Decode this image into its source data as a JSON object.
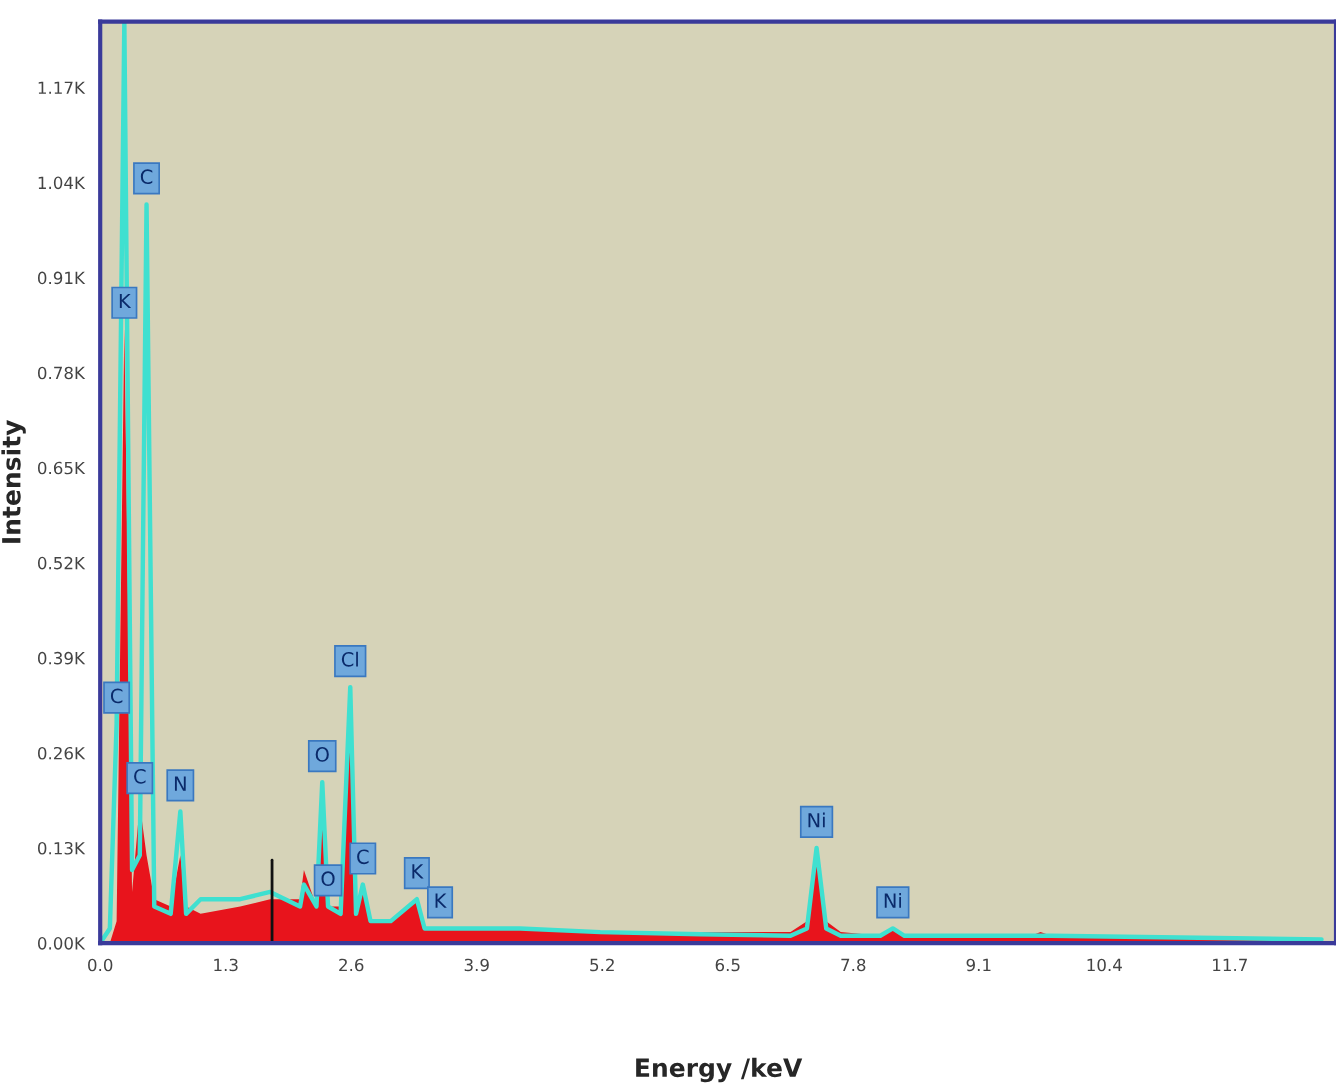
{
  "chart_data": {
    "type": "area",
    "xlabel": "Energy /keV",
    "ylabel": "Intensity",
    "x": [
      0,
      0.1,
      0.17,
      0.25,
      0.33,
      0.41,
      0.48,
      0.56,
      0.73,
      0.83,
      0.89,
      1.04,
      1.45,
      1.76,
      2.07,
      2.11,
      2.24,
      2.3,
      2.36,
      2.49,
      2.59,
      2.65,
      2.72,
      2.8,
      3.01,
      3.28,
      3.36,
      3.52,
      4.35,
      5.18,
      6.22,
      7.15,
      7.32,
      7.42,
      7.52,
      7.67,
      8.08,
      8.21,
      8.33,
      8.71,
      9.64,
      9.74,
      9.85,
      10.99,
      12.65
    ],
    "series": [
      {
        "color": "#e8141c",
        "values": [
          0,
          0.0,
          0.03,
          0.84,
          0.07,
          0.19,
          0.12,
          0.06,
          0.05,
          0.12,
          0.05,
          0.04,
          0.05,
          0.06,
          0.06,
          0.1,
          0.05,
          0.2,
          0.05,
          0.05,
          0.3,
          0.05,
          0.08,
          0.03,
          0.03,
          0.06,
          0.02,
          0.02,
          0.02,
          0.015,
          0.015,
          0.015,
          0.03,
          0.12,
          0.03,
          0.015,
          0.01,
          0.02,
          0.01,
          0.01,
          0.01,
          0.015,
          0.01,
          0.008,
          0.005
        ]
      },
      {
        "type": "line",
        "color": "#3fe0d0",
        "values": [
          0,
          0.02,
          0.3,
          1.26,
          0.1,
          0.12,
          1.01,
          0.05,
          0.04,
          0.18,
          0.04,
          0.06,
          0.06,
          0.07,
          0.05,
          0.08,
          0.05,
          0.22,
          0.05,
          0.04,
          0.35,
          0.04,
          0.08,
          0.03,
          0.03,
          0.06,
          0.02,
          0.02,
          0.02,
          0.015,
          0.012,
          0.01,
          0.02,
          0.13,
          0.02,
          0.01,
          0.01,
          0.02,
          0.01,
          0.01,
          0.01,
          0.01,
          0.01,
          0.008,
          0.005
        ]
      }
    ],
    "xlim": [
      0,
      12.8
    ],
    "xticks": [
      {
        "value": 0,
        "label": "0.0"
      },
      1.3,
      2.6,
      3.9,
      5.2,
      6.5,
      7.8,
      9.1,
      10.4,
      11.7
    ],
    "ylim": [
      0,
      1.26
    ],
    "yticks": [
      {
        "value": 0,
        "label": "0.00K"
      },
      {
        "value": 0.13,
        "label": "0.13K"
      },
      {
        "value": 0.26,
        "label": "0.26K"
      },
      {
        "value": 0.39,
        "label": "0.39K"
      },
      {
        "value": 0.52,
        "label": "0.52K"
      },
      {
        "value": 0.65,
        "label": "0.65K"
      },
      {
        "value": 0.78,
        "label": "0.78K"
      },
      {
        "value": 0.91,
        "label": "0.91K"
      },
      {
        "value": 1.04,
        "label": "1.04K"
      },
      {
        "value": 1.17,
        "label": "1.17K"
      }
    ],
    "ref_lines": [
      {
        "axis": "x",
        "value": 1.78,
        "color": "#111111"
      }
    ],
    "annotations": [
      {
        "text": "C",
        "x": 0.17,
        "y": 0.3
      },
      {
        "text": "K",
        "x": 0.25,
        "y": 0.84
      },
      {
        "text": "C",
        "x": 0.48,
        "y": 1.01
      },
      {
        "text": "C",
        "x": 0.41,
        "y": 0.19
      },
      {
        "text": "N",
        "x": 0.83,
        "y": 0.18
      },
      {
        "text": "O",
        "x": 2.3,
        "y": 0.22
      },
      {
        "text": "Cl",
        "x": 2.59,
        "y": 0.35
      },
      {
        "text": "O",
        "x": 2.36,
        "y": 0.05
      },
      {
        "text": "C",
        "x": 2.72,
        "y": 0.08
      },
      {
        "text": "K",
        "x": 3.28,
        "y": 0.06
      },
      {
        "text": "K",
        "x": 3.52,
        "y": 0.02
      },
      {
        "text": "Ni",
        "x": 7.42,
        "y": 0.13
      },
      {
        "text": "Ni",
        "x": 8.21,
        "y": 0.02
      }
    ],
    "grid": false,
    "legend": false
  }
}
